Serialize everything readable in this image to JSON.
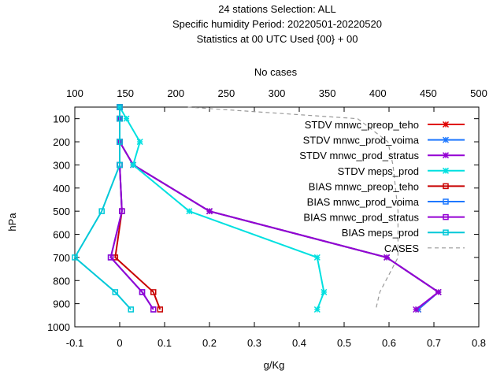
{
  "title_lines": [
    "24 stations Selection: ALL",
    "Specific humidity  Period: 20220501-20220520",
    "Statistics at 00 UTC  Used {00} + 00"
  ],
  "chart_data": {
    "type": "line",
    "xlabel": "g/Kg",
    "ylabel": "hPa",
    "x2label": "No cases",
    "xlim": [
      -0.1,
      0.8
    ],
    "ylim": [
      1000,
      50
    ],
    "x2lim": [
      100,
      500
    ],
    "xticks": [
      "-0.1",
      "0",
      "0.1",
      "0.2",
      "0.3",
      "0.4",
      "0.5",
      "0.6",
      "0.7",
      "0.8"
    ],
    "yticks": [
      "100",
      "200",
      "300",
      "400",
      "500",
      "600",
      "700",
      "800",
      "900",
      "1000"
    ],
    "x2ticks": [
      "100",
      "150",
      "200",
      "250",
      "300",
      "350",
      "400",
      "450",
      "500"
    ],
    "legend_position": "top-right",
    "series": [
      {
        "name": "STDV mnwc_preop_teho",
        "color": "#e00000",
        "marker": "star",
        "x": [
          0.0,
          0.0,
          0.0,
          0.03,
          0.2,
          0.595,
          0.71,
          0.665
        ],
        "y": [
          50,
          100,
          200,
          300,
          500,
          700,
          850,
          925
        ]
      },
      {
        "name": "STDV mnwc_prod_voima",
        "color": "#1e78ff",
        "marker": "star",
        "x": [
          0.0,
          0.0,
          0.0,
          0.03,
          0.2,
          0.595,
          0.71,
          0.665
        ],
        "y": [
          50,
          100,
          200,
          300,
          500,
          700,
          850,
          925
        ]
      },
      {
        "name": "STDV mnwc_prod_stratus",
        "color": "#9400d3",
        "marker": "star",
        "x": [
          0.0,
          0.0,
          0.0,
          0.03,
          0.2,
          0.595,
          0.71,
          0.66
        ],
        "y": [
          50,
          100,
          200,
          300,
          500,
          700,
          850,
          925
        ]
      },
      {
        "name": "STDV meps_prod",
        "color": "#00e0e0",
        "marker": "star",
        "x": [
          0.0,
          0.015,
          0.045,
          0.03,
          0.155,
          0.44,
          0.455,
          0.44
        ],
        "y": [
          50,
          100,
          200,
          300,
          500,
          700,
          850,
          925
        ]
      },
      {
        "name": "BIAS mnwc_preop_teho",
        "color": "#c80000",
        "marker": "square",
        "x": [
          0.0,
          0.0,
          0.0,
          0.0,
          0.005,
          -0.01,
          0.075,
          0.09
        ],
        "y": [
          50,
          100,
          200,
          300,
          500,
          700,
          850,
          925
        ]
      },
      {
        "name": "BIAS mnwc_prod_voima",
        "color": "#1e78ff",
        "marker": "square",
        "x": [
          0.0,
          0.0,
          0.0,
          0.0,
          0.005,
          -0.02,
          0.05,
          0.075
        ],
        "y": [
          50,
          100,
          200,
          300,
          500,
          700,
          850,
          925
        ]
      },
      {
        "name": "BIAS mnwc_prod_stratus",
        "color": "#9400d3",
        "marker": "square",
        "x": [
          0.0,
          0.0,
          0.0,
          0.0,
          0.005,
          -0.02,
          0.05,
          0.075
        ],
        "y": [
          50,
          100,
          200,
          300,
          500,
          700,
          850,
          925
        ]
      },
      {
        "name": "BIAS meps_prod",
        "color": "#00c8d8",
        "marker": "square",
        "x": [
          0.0,
          0.0,
          0.0,
          0.0,
          -0.04,
          -0.1,
          -0.01,
          0.025
        ],
        "y": [
          50,
          100,
          200,
          300,
          500,
          700,
          850,
          925
        ]
      },
      {
        "name": "CASES",
        "color": "#999999",
        "marker": "none",
        "dashed": true,
        "axis": "x2",
        "x": [
          212,
          380,
          410,
          415,
          420,
          420,
          402,
          398
        ],
        "y": [
          50,
          100,
          200,
          300,
          500,
          700,
          850,
          925
        ]
      }
    ]
  }
}
